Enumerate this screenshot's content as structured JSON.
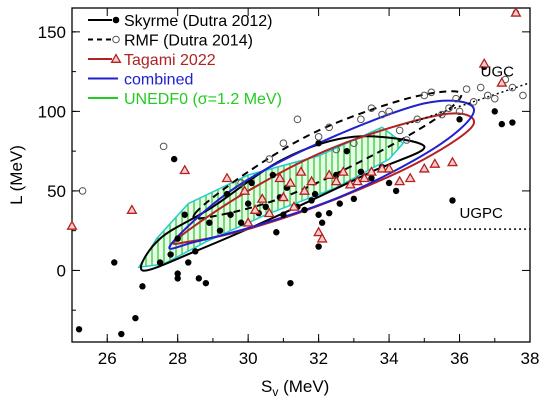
{
  "chart_data": {
    "type": "scatter",
    "xlabel": "S",
    "xlabel_sub": "v",
    "xlabel_unit": " (MeV)",
    "ylabel": "L (MeV)",
    "xlim": [
      25,
      38
    ],
    "ylim": [
      -45,
      165
    ],
    "xticks": [
      26,
      28,
      30,
      32,
      34,
      36,
      38
    ],
    "yticks": [
      0,
      50,
      100,
      150
    ],
    "xtick_labels": [
      "26",
      "28",
      "30",
      "32",
      "34",
      "36",
      "38"
    ],
    "ytick_labels": [
      "0",
      "50",
      "100",
      "150"
    ],
    "legend_position": "top-left",
    "legend": [
      {
        "key": "skyrme",
        "label": "Skyrme (Dutra 2012)",
        "color": "#000000"
      },
      {
        "key": "rmf",
        "label": "RMF (Dutra 2014)",
        "color": "#000000"
      },
      {
        "key": "tagami",
        "label": "Tagami 2022",
        "color": "#b22222"
      },
      {
        "key": "combined",
        "label": "combined",
        "color": "#2020d0"
      },
      {
        "key": "unedf",
        "label": "UNEDF0 (σ=1.2 MeV)",
        "color": "#22cc22"
      }
    ],
    "annotations": {
      "ugc": "UGC",
      "ugpc": "UGPC"
    },
    "ugc_line": [
      [
        34.5,
        92
      ],
      [
        38,
        118
      ]
    ],
    "ugpc_line": [
      [
        34,
        26
      ],
      [
        38,
        26
      ]
    ],
    "ellipses": [
      {
        "key": "skyrme",
        "color": "#000000",
        "dash": "none",
        "center": [
          31,
          48
        ],
        "path": [
          [
            27.0,
            0
          ],
          [
            28.5,
            12
          ],
          [
            31.0,
            36
          ],
          [
            33.5,
            62
          ],
          [
            35.0,
            78
          ],
          [
            33.0,
            84
          ],
          [
            31.0,
            70
          ],
          [
            29.0,
            40
          ],
          [
            27.5,
            20
          ],
          [
            27.0,
            0
          ]
        ]
      },
      {
        "key": "rmf",
        "color": "#000000",
        "dash": "dashed",
        "center": [
          32,
          72
        ],
        "path": [
          [
            28.5,
            36
          ],
          [
            30.0,
            62
          ],
          [
            32.0,
            88
          ],
          [
            34.5,
            108
          ],
          [
            36.0,
            112
          ],
          [
            35.5,
            98
          ],
          [
            33.5,
            72
          ],
          [
            31.0,
            46
          ],
          [
            29.0,
            34
          ],
          [
            28.5,
            36
          ]
        ]
      },
      {
        "key": "tagami",
        "color": "#b22222",
        "dash": "none",
        "center": [
          32.2,
          60
        ],
        "path": [
          [
            28.0,
            20
          ],
          [
            30.0,
            50
          ],
          [
            32.5,
            78
          ],
          [
            35.5,
            98
          ],
          [
            36.4,
            92
          ],
          [
            35.0,
            70
          ],
          [
            32.5,
            45
          ],
          [
            30.0,
            26
          ],
          [
            28.3,
            18
          ],
          [
            28.0,
            20
          ]
        ]
      },
      {
        "key": "combined",
        "color": "#2020d0",
        "dash": "none",
        "center": [
          32.2,
          62
        ],
        "path": [
          [
            27.8,
            16
          ],
          [
            29.5,
            50
          ],
          [
            32.0,
            80
          ],
          [
            35.0,
            105
          ],
          [
            36.4,
            102
          ],
          [
            35.5,
            80
          ],
          [
            33.0,
            50
          ],
          [
            30.5,
            30
          ],
          [
            28.5,
            18
          ],
          [
            27.8,
            16
          ]
        ]
      }
    ],
    "unedf_band": {
      "color": "#22cc22",
      "polygon": [
        [
          26.9,
          2
        ],
        [
          27.4,
          20
        ],
        [
          28.3,
          42
        ],
        [
          30.0,
          60
        ],
        [
          32.0,
          72
        ],
        [
          33.8,
          90
        ],
        [
          34.4,
          80
        ],
        [
          34.0,
          70
        ],
        [
          32.5,
          52
        ],
        [
          30.5,
          35
        ],
        [
          28.8,
          18
        ],
        [
          27.6,
          4
        ],
        [
          26.9,
          2
        ]
      ]
    },
    "series": [
      {
        "key": "skyrme",
        "marker": "filled-circle",
        "color": "#000000",
        "points": [
          [
            25.2,
            -37
          ],
          [
            26.4,
            -40
          ],
          [
            26.8,
            -30
          ],
          [
            27.0,
            -10
          ],
          [
            27.5,
            5
          ],
          [
            27.8,
            10
          ],
          [
            28.0,
            -2
          ],
          [
            28.0,
            -5
          ],
          [
            28.0,
            20
          ],
          [
            28.2,
            35
          ],
          [
            28.3,
            5
          ],
          [
            28.5,
            12
          ],
          [
            28.6,
            -5
          ],
          [
            28.8,
            -8
          ],
          [
            28.9,
            30
          ],
          [
            29.2,
            25
          ],
          [
            29.4,
            48
          ],
          [
            29.5,
            35
          ],
          [
            29.8,
            30
          ],
          [
            30.0,
            42
          ],
          [
            30.1,
            55
          ],
          [
            30.3,
            36
          ],
          [
            30.5,
            40
          ],
          [
            30.7,
            60
          ],
          [
            30.8,
            24
          ],
          [
            30.9,
            46
          ],
          [
            31.0,
            35
          ],
          [
            31.1,
            52
          ],
          [
            31.2,
            -8
          ],
          [
            31.4,
            40
          ],
          [
            31.6,
            38
          ],
          [
            31.8,
            44
          ],
          [
            31.9,
            48
          ],
          [
            32.0,
            35
          ],
          [
            32.0,
            15
          ],
          [
            32.1,
            30
          ],
          [
            32.0,
            80
          ],
          [
            32.3,
            36
          ],
          [
            32.5,
            60
          ],
          [
            32.6,
            42
          ],
          [
            32.8,
            75
          ],
          [
            33.0,
            45
          ],
          [
            33.2,
            62
          ],
          [
            33.5,
            58
          ],
          [
            33.8,
            65
          ],
          [
            34.0,
            55
          ],
          [
            34.2,
            50
          ],
          [
            35.8,
            44
          ],
          [
            36.0,
            95
          ],
          [
            36.7,
            128
          ],
          [
            37.0,
            100
          ],
          [
            37.2,
            92
          ],
          [
            37.5,
            93
          ],
          [
            37.6,
            162
          ],
          [
            26.2,
            5
          ],
          [
            27.9,
            70
          ]
        ]
      },
      {
        "key": "rmf",
        "marker": "open-circle",
        "color": "#000000",
        "points": [
          [
            25.3,
            50
          ],
          [
            27.6,
            78
          ],
          [
            29.8,
            55
          ],
          [
            30.6,
            70
          ],
          [
            31.0,
            80
          ],
          [
            31.4,
            95
          ],
          [
            32.0,
            84
          ],
          [
            32.3,
            90
          ],
          [
            32.5,
            76
          ],
          [
            33.0,
            80
          ],
          [
            33.2,
            95
          ],
          [
            33.5,
            102
          ],
          [
            33.8,
            98
          ],
          [
            34.0,
            100
          ],
          [
            34.3,
            88
          ],
          [
            34.5,
            82
          ],
          [
            34.8,
            95
          ],
          [
            35.0,
            110
          ],
          [
            35.2,
            112
          ],
          [
            35.5,
            98
          ],
          [
            35.7,
            102
          ],
          [
            35.9,
            108
          ],
          [
            36.0,
            100
          ],
          [
            36.2,
            114
          ],
          [
            36.4,
            106
          ],
          [
            36.6,
            115
          ],
          [
            36.8,
            110
          ],
          [
            37.0,
            108
          ],
          [
            37.3,
            120
          ],
          [
            37.5,
            115
          ],
          [
            37.8,
            110
          ]
        ]
      },
      {
        "key": "tagami",
        "marker": "open-triangle",
        "color": "#b22222",
        "points": [
          [
            25.0,
            28
          ],
          [
            26.7,
            38
          ],
          [
            28.2,
            63
          ],
          [
            29.4,
            58
          ],
          [
            29.9,
            50
          ],
          [
            30.0,
            30
          ],
          [
            30.2,
            38
          ],
          [
            30.4,
            45
          ],
          [
            30.6,
            36
          ],
          [
            30.9,
            58
          ],
          [
            31.0,
            46
          ],
          [
            31.2,
            55
          ],
          [
            31.3,
            40
          ],
          [
            31.5,
            62
          ],
          [
            31.6,
            50
          ],
          [
            31.8,
            56
          ],
          [
            32.0,
            24
          ],
          [
            32.1,
            20
          ],
          [
            32.3,
            60
          ],
          [
            32.5,
            56
          ],
          [
            32.7,
            62
          ],
          [
            32.9,
            54
          ],
          [
            33.1,
            56
          ],
          [
            33.3,
            58
          ],
          [
            33.5,
            62
          ],
          [
            33.8,
            64
          ],
          [
            34.0,
            64
          ],
          [
            34.3,
            56
          ],
          [
            34.6,
            58
          ],
          [
            35.0,
            64
          ],
          [
            35.3,
            67
          ],
          [
            35.8,
            68
          ],
          [
            37.2,
            118
          ],
          [
            37.6,
            162
          ],
          [
            36.7,
            130
          ]
        ]
      }
    ]
  }
}
